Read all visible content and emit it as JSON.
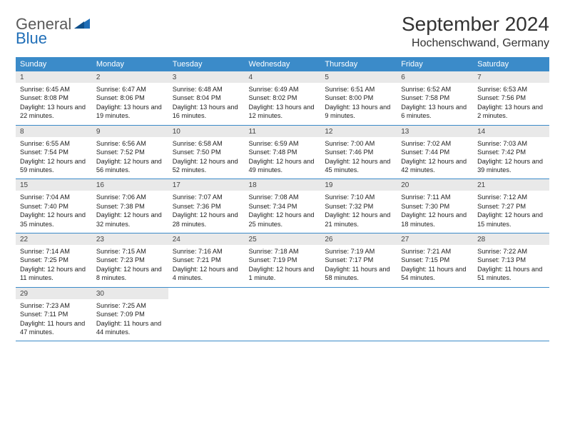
{
  "logo": {
    "word1": "General",
    "word2": "Blue"
  },
  "title": "September 2024",
  "location": "Hochenschwand, Germany",
  "colors": {
    "header_bg": "#3b8bc9",
    "header_text": "#ffffff",
    "daynum_bg": "#e9e9e9",
    "row_divider": "#3b8bc9",
    "logo_gray": "#5a5a5a",
    "logo_blue": "#1f6eb7"
  },
  "weekdays": [
    "Sunday",
    "Monday",
    "Tuesday",
    "Wednesday",
    "Thursday",
    "Friday",
    "Saturday"
  ],
  "weeks": [
    [
      {
        "n": "1",
        "sr": "6:45 AM",
        "ss": "8:08 PM",
        "dl": "13 hours and 22 minutes."
      },
      {
        "n": "2",
        "sr": "6:47 AM",
        "ss": "8:06 PM",
        "dl": "13 hours and 19 minutes."
      },
      {
        "n": "3",
        "sr": "6:48 AM",
        "ss": "8:04 PM",
        "dl": "13 hours and 16 minutes."
      },
      {
        "n": "4",
        "sr": "6:49 AM",
        "ss": "8:02 PM",
        "dl": "13 hours and 12 minutes."
      },
      {
        "n": "5",
        "sr": "6:51 AM",
        "ss": "8:00 PM",
        "dl": "13 hours and 9 minutes."
      },
      {
        "n": "6",
        "sr": "6:52 AM",
        "ss": "7:58 PM",
        "dl": "13 hours and 6 minutes."
      },
      {
        "n": "7",
        "sr": "6:53 AM",
        "ss": "7:56 PM",
        "dl": "13 hours and 2 minutes."
      }
    ],
    [
      {
        "n": "8",
        "sr": "6:55 AM",
        "ss": "7:54 PM",
        "dl": "12 hours and 59 minutes."
      },
      {
        "n": "9",
        "sr": "6:56 AM",
        "ss": "7:52 PM",
        "dl": "12 hours and 56 minutes."
      },
      {
        "n": "10",
        "sr": "6:58 AM",
        "ss": "7:50 PM",
        "dl": "12 hours and 52 minutes."
      },
      {
        "n": "11",
        "sr": "6:59 AM",
        "ss": "7:48 PM",
        "dl": "12 hours and 49 minutes."
      },
      {
        "n": "12",
        "sr": "7:00 AM",
        "ss": "7:46 PM",
        "dl": "12 hours and 45 minutes."
      },
      {
        "n": "13",
        "sr": "7:02 AM",
        "ss": "7:44 PM",
        "dl": "12 hours and 42 minutes."
      },
      {
        "n": "14",
        "sr": "7:03 AM",
        "ss": "7:42 PM",
        "dl": "12 hours and 39 minutes."
      }
    ],
    [
      {
        "n": "15",
        "sr": "7:04 AM",
        "ss": "7:40 PM",
        "dl": "12 hours and 35 minutes."
      },
      {
        "n": "16",
        "sr": "7:06 AM",
        "ss": "7:38 PM",
        "dl": "12 hours and 32 minutes."
      },
      {
        "n": "17",
        "sr": "7:07 AM",
        "ss": "7:36 PM",
        "dl": "12 hours and 28 minutes."
      },
      {
        "n": "18",
        "sr": "7:08 AM",
        "ss": "7:34 PM",
        "dl": "12 hours and 25 minutes."
      },
      {
        "n": "19",
        "sr": "7:10 AM",
        "ss": "7:32 PM",
        "dl": "12 hours and 21 minutes."
      },
      {
        "n": "20",
        "sr": "7:11 AM",
        "ss": "7:30 PM",
        "dl": "12 hours and 18 minutes."
      },
      {
        "n": "21",
        "sr": "7:12 AM",
        "ss": "7:27 PM",
        "dl": "12 hours and 15 minutes."
      }
    ],
    [
      {
        "n": "22",
        "sr": "7:14 AM",
        "ss": "7:25 PM",
        "dl": "12 hours and 11 minutes."
      },
      {
        "n": "23",
        "sr": "7:15 AM",
        "ss": "7:23 PM",
        "dl": "12 hours and 8 minutes."
      },
      {
        "n": "24",
        "sr": "7:16 AM",
        "ss": "7:21 PM",
        "dl": "12 hours and 4 minutes."
      },
      {
        "n": "25",
        "sr": "7:18 AM",
        "ss": "7:19 PM",
        "dl": "12 hours and 1 minute."
      },
      {
        "n": "26",
        "sr": "7:19 AM",
        "ss": "7:17 PM",
        "dl": "11 hours and 58 minutes."
      },
      {
        "n": "27",
        "sr": "7:21 AM",
        "ss": "7:15 PM",
        "dl": "11 hours and 54 minutes."
      },
      {
        "n": "28",
        "sr": "7:22 AM",
        "ss": "7:13 PM",
        "dl": "11 hours and 51 minutes."
      }
    ],
    [
      {
        "n": "29",
        "sr": "7:23 AM",
        "ss": "7:11 PM",
        "dl": "11 hours and 47 minutes."
      },
      {
        "n": "30",
        "sr": "7:25 AM",
        "ss": "7:09 PM",
        "dl": "11 hours and 44 minutes."
      },
      null,
      null,
      null,
      null,
      null
    ]
  ],
  "labels": {
    "sunrise": "Sunrise:",
    "sunset": "Sunset:",
    "daylight": "Daylight:"
  }
}
